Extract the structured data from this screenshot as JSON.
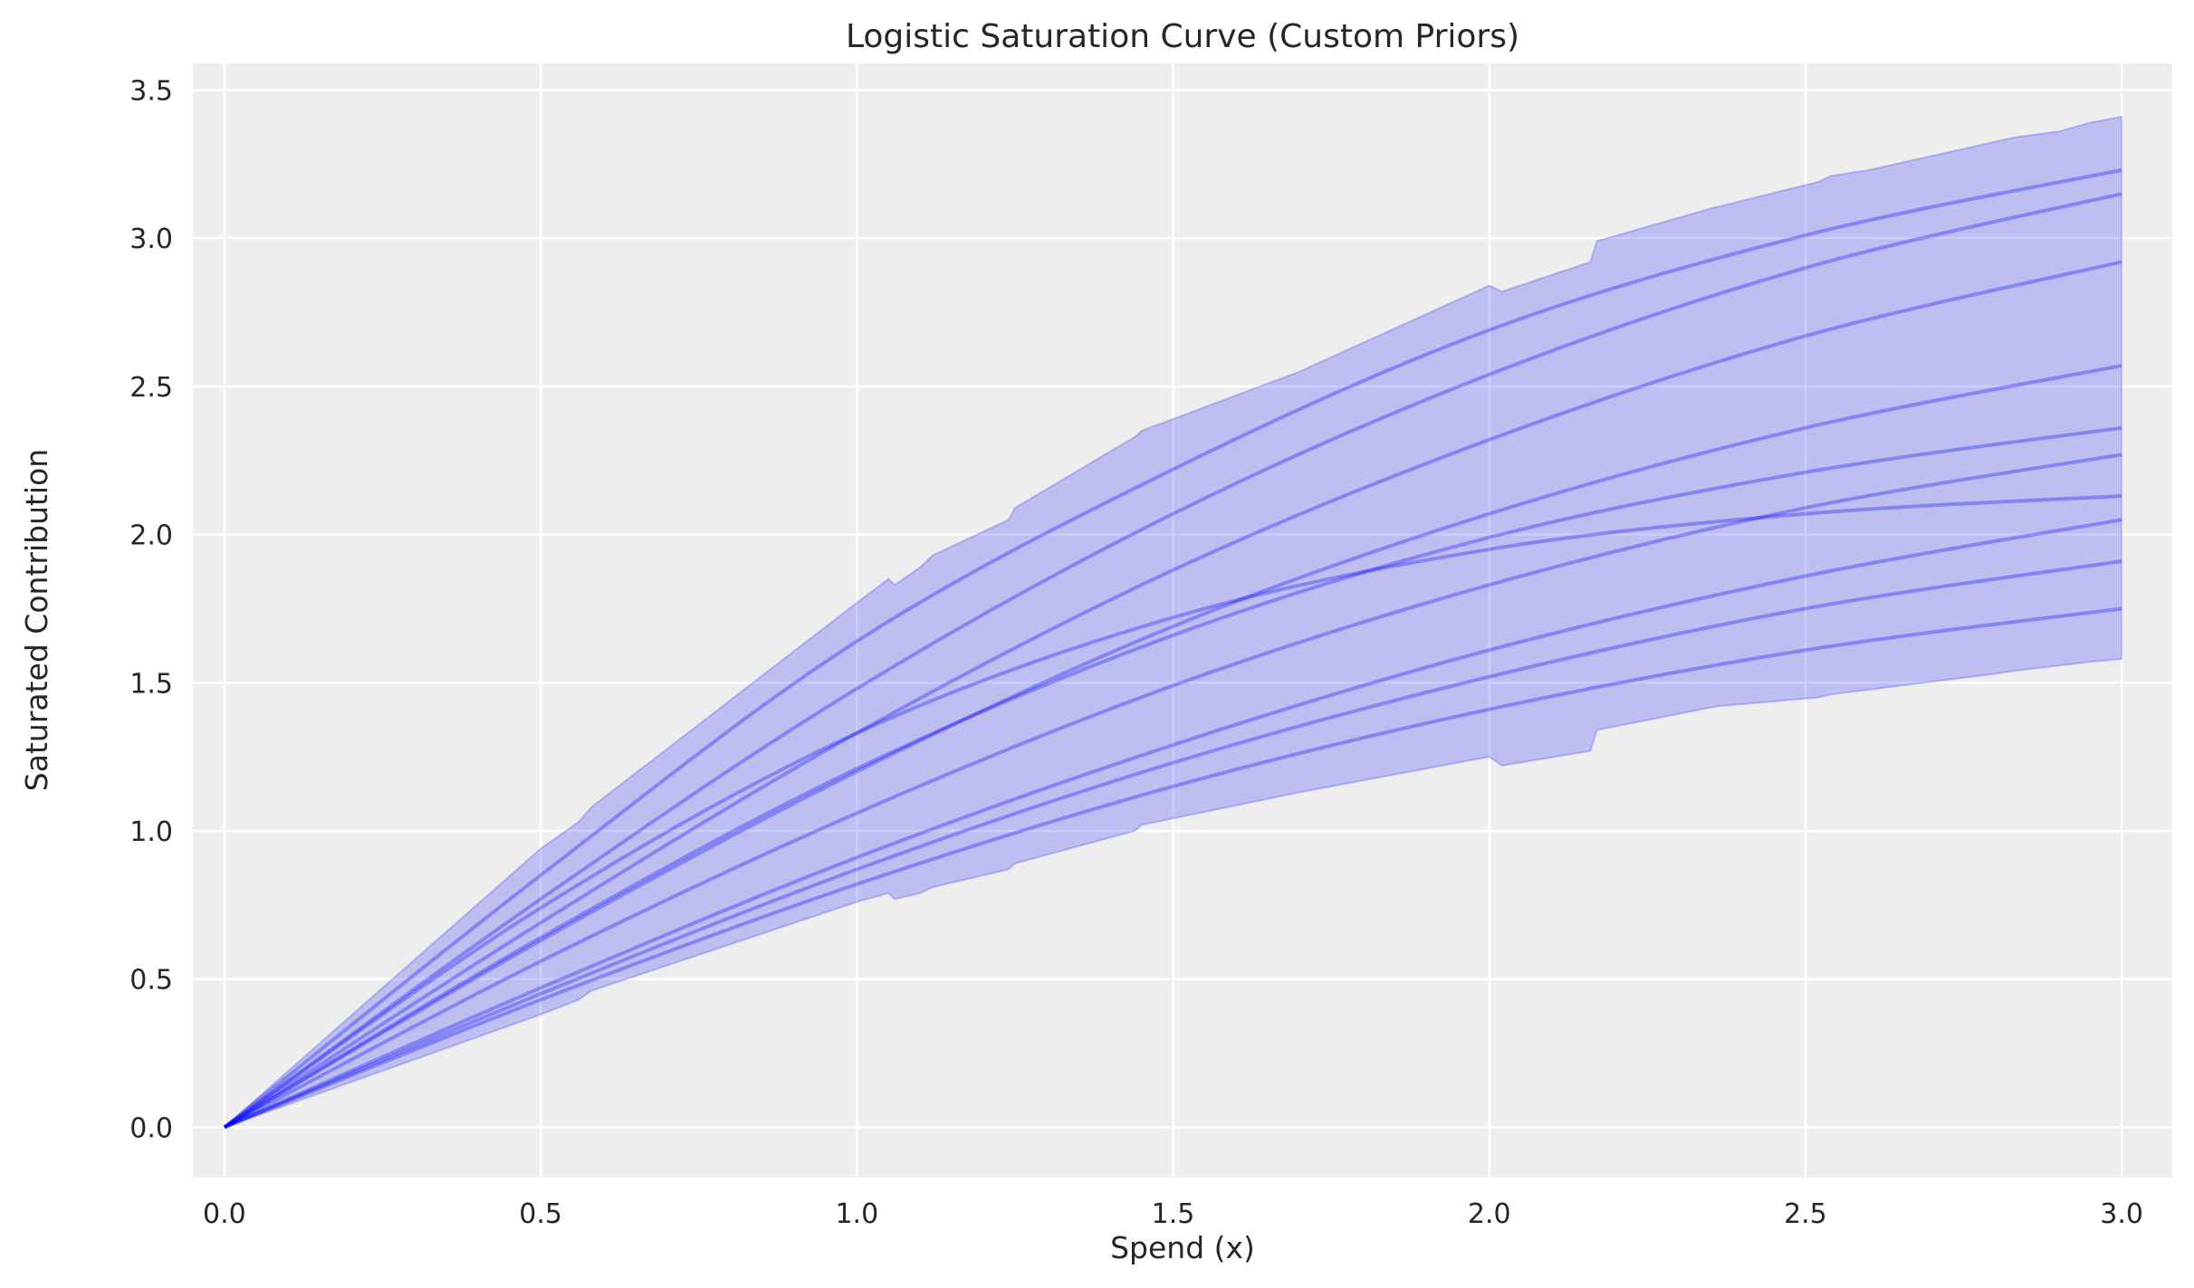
{
  "chart_data": {
    "type": "line",
    "title": "Logistic Saturation Curve (Custom Priors)",
    "xlabel": "Spend (x)",
    "ylabel": "Saturated Contribution",
    "xlim": [
      -0.05,
      3.08
    ],
    "ylim": [
      -0.17,
      3.59
    ],
    "xticks": [
      "0.0",
      "0.5",
      "1.0",
      "1.5",
      "2.0",
      "2.5",
      "3.0"
    ],
    "yticks": [
      "0.0",
      "0.5",
      "1.0",
      "1.5",
      "2.0",
      "2.5",
      "3.0",
      "3.5"
    ],
    "grid": true,
    "colors": {
      "background": "#eeeeee",
      "grid": "#ffffff",
      "band": "#0000ff",
      "line": "#0000ff"
    },
    "x": [
      0,
      0.5,
      1.0,
      1.5,
      2.0,
      2.5,
      3.0
    ],
    "series": [
      {
        "values": [
          0,
          0.85,
          1.64,
          2.22,
          2.69,
          3.01,
          3.23
        ]
      },
      {
        "values": [
          0,
          0.77,
          1.48,
          2.07,
          2.54,
          2.9,
          3.15
        ]
      },
      {
        "values": [
          0,
          0.69,
          1.33,
          1.88,
          2.32,
          2.67,
          2.92
        ]
      },
      {
        "values": [
          0,
          0.63,
          1.2,
          1.69,
          2.07,
          2.36,
          2.57
        ]
      },
      {
        "values": [
          0,
          0.64,
          1.21,
          1.66,
          1.99,
          2.21,
          2.36
        ]
      },
      {
        "values": [
          0,
          0.56,
          1.06,
          1.49,
          1.83,
          2.09,
          2.27
        ]
      },
      {
        "values": [
          0,
          0.74,
          1.33,
          1.72,
          1.95,
          2.07,
          2.13
        ]
      },
      {
        "values": [
          0,
          0.47,
          0.91,
          1.29,
          1.61,
          1.86,
          2.05
        ]
      },
      {
        "values": [
          0,
          0.45,
          0.87,
          1.23,
          1.52,
          1.75,
          1.91
        ]
      },
      {
        "values": [
          0,
          0.43,
          0.82,
          1.15,
          1.41,
          1.61,
          1.75
        ]
      }
    ],
    "band": {
      "upper": [
        [
          0,
          0
        ],
        [
          0.5,
          0.94
        ],
        [
          0.56,
          1.03
        ],
        [
          0.58,
          1.08
        ],
        [
          1.0,
          1.77
        ],
        [
          1.05,
          1.85
        ],
        [
          1.06,
          1.83
        ],
        [
          1.1,
          1.89
        ],
        [
          1.12,
          1.93
        ],
        [
          1.24,
          2.05
        ],
        [
          1.25,
          2.09
        ],
        [
          1.44,
          2.33
        ],
        [
          1.45,
          2.35
        ],
        [
          1.7,
          2.55
        ],
        [
          2.0,
          2.84
        ],
        [
          2.02,
          2.82
        ],
        [
          2.16,
          2.92
        ],
        [
          2.17,
          2.99
        ],
        [
          2.35,
          3.1
        ],
        [
          2.52,
          3.19
        ],
        [
          2.54,
          3.21
        ],
        [
          2.6,
          3.23
        ],
        [
          2.83,
          3.34
        ],
        [
          2.9,
          3.36
        ],
        [
          2.95,
          3.39
        ],
        [
          3.0,
          3.41
        ]
      ],
      "lower": [
        [
          0,
          0
        ],
        [
          0.5,
          0.38
        ],
        [
          0.56,
          0.43
        ],
        [
          0.58,
          0.46
        ],
        [
          1.0,
          0.76
        ],
        [
          1.05,
          0.79
        ],
        [
          1.06,
          0.77
        ],
        [
          1.1,
          0.79
        ],
        [
          1.12,
          0.81
        ],
        [
          1.24,
          0.87
        ],
        [
          1.25,
          0.89
        ],
        [
          1.44,
          1.0
        ],
        [
          1.45,
          1.02
        ],
        [
          1.7,
          1.13
        ],
        [
          2.0,
          1.25
        ],
        [
          2.02,
          1.22
        ],
        [
          2.16,
          1.27
        ],
        [
          2.17,
          1.34
        ],
        [
          2.36,
          1.42
        ],
        [
          2.52,
          1.45
        ],
        [
          2.54,
          1.46
        ],
        [
          2.8,
          1.53
        ],
        [
          2.83,
          1.54
        ],
        [
          2.95,
          1.57
        ],
        [
          3.0,
          1.58
        ]
      ]
    }
  }
}
